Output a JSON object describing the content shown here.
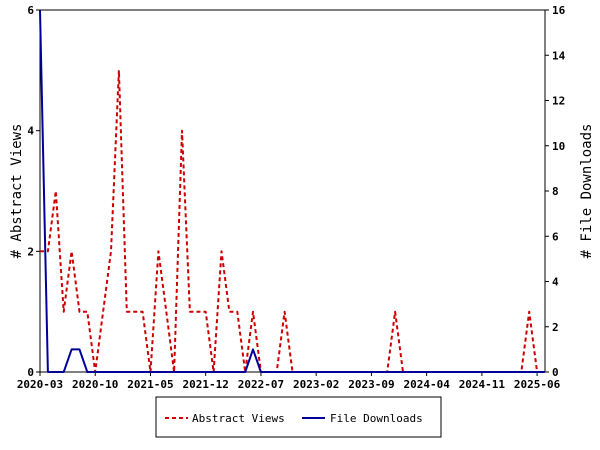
{
  "chart_data": {
    "type": "line",
    "x": [
      "2020-03",
      "2020-04",
      "2020-05",
      "2020-06",
      "2020-07",
      "2020-08",
      "2020-09",
      "2020-10",
      "2020-11",
      "2020-12",
      "2021-01",
      "2021-02",
      "2021-03",
      "2021-04",
      "2021-05",
      "2021-06",
      "2021-07",
      "2021-08",
      "2021-09",
      "2021-10",
      "2021-11",
      "2021-12",
      "2022-01",
      "2022-02",
      "2022-03",
      "2022-04",
      "2022-05",
      "2022-06",
      "2022-07",
      "2022-08",
      "2022-09",
      "2022-10",
      "2022-11",
      "2022-12",
      "2023-01",
      "2023-02",
      "2023-03",
      "2023-04",
      "2023-05",
      "2023-06",
      "2023-07",
      "2023-08",
      "2023-09",
      "2023-10",
      "2023-11",
      "2023-12",
      "2024-01",
      "2024-02",
      "2024-03",
      "2024-04",
      "2024-05",
      "2024-06",
      "2024-07",
      "2024-08",
      "2024-09",
      "2024-10",
      "2024-11",
      "2024-12",
      "2025-01",
      "2025-02",
      "2025-03",
      "2025-04",
      "2025-05",
      "2025-06",
      "2025-07"
    ],
    "series": [
      {
        "name": "Abstract Views",
        "axis": "left",
        "color": "#cc0000",
        "dash": true,
        "values": [
          2,
          2,
          3,
          1,
          2,
          1,
          1,
          0,
          1,
          2,
          5,
          1,
          1,
          1,
          0,
          2,
          1,
          0,
          4,
          1,
          1,
          1,
          0,
          2,
          1,
          1,
          0,
          1,
          0,
          0,
          0,
          1,
          0,
          0,
          0,
          0,
          0,
          0,
          0,
          0,
          0,
          0,
          0,
          0,
          0,
          1,
          0,
          0,
          0,
          0,
          0,
          0,
          0,
          0,
          0,
          0,
          0,
          0,
          0,
          0,
          0,
          0,
          1,
          0,
          0
        ]
      },
      {
        "name": "File Downloads",
        "axis": "right",
        "color": "#000099",
        "dash": false,
        "values": [
          16,
          0,
          0,
          0,
          1,
          1,
          0,
          0,
          0,
          0,
          0,
          0,
          0,
          0,
          0,
          0,
          0,
          0,
          0,
          0,
          0,
          0,
          0,
          0,
          0,
          0,
          0,
          1,
          0,
          0,
          0,
          0,
          0,
          0,
          0,
          0,
          0,
          0,
          0,
          0,
          0,
          0,
          0,
          0,
          0,
          0,
          0,
          0,
          0,
          0,
          0,
          0,
          0,
          0,
          0,
          0,
          0,
          0,
          0,
          0,
          0,
          0,
          0,
          0,
          0
        ]
      }
    ],
    "xticks": [
      "2020-03",
      "2020-10",
      "2021-05",
      "2021-12",
      "2022-07",
      "2023-02",
      "2023-09",
      "2024-04",
      "2024-11",
      "2025-06"
    ],
    "yticks_left": [
      "0",
      "2",
      "4",
      "6"
    ],
    "yticks_right": [
      "0",
      "2",
      "4",
      "6",
      "8",
      "10",
      "12",
      "14",
      "16"
    ],
    "ylabel": "# Abstract Views",
    "ylabel_right": "# File Downloads",
    "ylim": [
      0,
      6
    ],
    "ylim_right": [
      0,
      16
    ],
    "legend_position": "bottom-center",
    "grid": false
  }
}
